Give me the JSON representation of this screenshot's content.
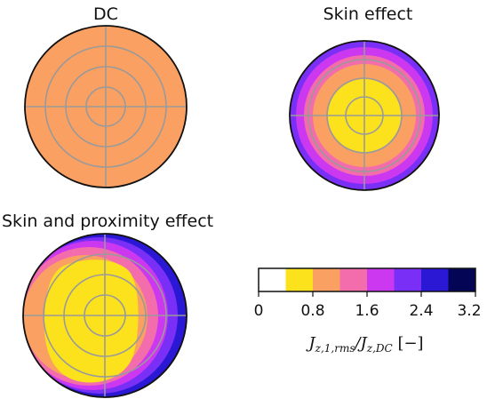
{
  "panels": [
    {
      "title": "DC"
    },
    {
      "title": "Skin effect"
    },
    {
      "title": "Skin and proximity effect"
    }
  ],
  "colorbar": {
    "ticks": [
      "0",
      "0.8",
      "1.6",
      "2.4",
      "3.2"
    ],
    "label": "J_{z,1,rms}/J_{z,DC} [−]",
    "label_main": "J",
    "label_sub1": "z,1,rms",
    "label_slash": "/J",
    "label_sub2": "z,DC",
    "label_unit": " [−]",
    "bins": [
      0,
      0.4,
      0.8,
      1.2,
      1.6,
      2.0,
      2.4,
      2.8,
      3.2
    ],
    "colors": [
      "#ffffff",
      "#fce21d",
      "#f9a062",
      "#f36cac",
      "#cc38f0",
      "#7a2ff6",
      "#2a18d4",
      "#050555"
    ]
  }
}
